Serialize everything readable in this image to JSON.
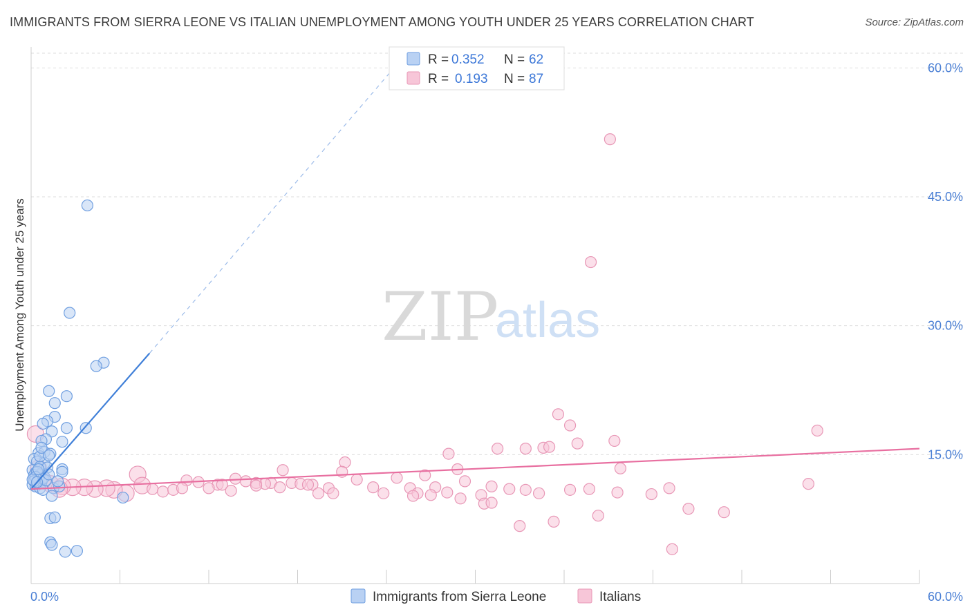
{
  "header": {
    "title": "IMMIGRANTS FROM SIERRA LEONE VS ITALIAN UNEMPLOYMENT AMONG YOUTH UNDER 25 YEARS CORRELATION CHART",
    "source": "Source: ZipAtlas.com"
  },
  "watermark": {
    "zip": "ZIP",
    "atlas": "atlas"
  },
  "colors": {
    "blue": "#3f7fd8",
    "blue_fill": "#b9d1f3",
    "pink": "#e86fa0",
    "pink_fill": "#f7c6d8",
    "axis_label": "#4a7fd4",
    "grid": "#dddddd"
  },
  "chart_data": {
    "type": "scatter",
    "title": "IMMIGRANTS FROM SIERRA LEONE VS ITALIAN UNEMPLOYMENT AMONG YOUTH UNDER 25 YEARS CORRELATION CHART",
    "xlabel": "",
    "ylabel": "Unemployment Among Youth under 25 years",
    "xlim": [
      0,
      60
    ],
    "ylim": [
      0,
      63
    ],
    "x_tick_labels": {
      "min": "0.0%",
      "max": "60.0%"
    },
    "y_ticks": [
      {
        "value": 15,
        "label": "15.0%"
      },
      {
        "value": 30,
        "label": "30.0%"
      },
      {
        "value": 45,
        "label": "45.0%"
      },
      {
        "value": 60,
        "label": "60.0%"
      }
    ],
    "legend": [
      {
        "series": "Immigrants from Sierra Leone",
        "r_label": "R =",
        "r": "0.352",
        "n_label": "N =",
        "n": "62"
      },
      {
        "series": "Italians",
        "r_label": "R =",
        "r": "0.193",
        "n_label": "N =",
        "n": "87"
      }
    ],
    "series": [
      {
        "name": "Immigrants from Sierra Leone",
        "color": "blue",
        "trend": {
          "x0": 0,
          "y0": 11.0,
          "x1": 8,
          "y1": 26.8,
          "dash_to_x": 25.5,
          "dash_to_y": 62
        },
        "points": [
          [
            3.8,
            44.0
          ],
          [
            2.6,
            31.5
          ],
          [
            4.9,
            25.7
          ],
          [
            4.4,
            25.3
          ],
          [
            1.2,
            22.4
          ],
          [
            2.4,
            21.8
          ],
          [
            1.6,
            21.0
          ],
          [
            1.6,
            19.4
          ],
          [
            1.1,
            18.9
          ],
          [
            0.8,
            18.6
          ],
          [
            2.4,
            18.1
          ],
          [
            3.7,
            18.1
          ],
          [
            1.4,
            17.7
          ],
          [
            1.0,
            16.8
          ],
          [
            0.7,
            16.6
          ],
          [
            2.1,
            16.5
          ],
          [
            0.5,
            15.2
          ],
          [
            0.9,
            15.3
          ],
          [
            1.3,
            15.1
          ],
          [
            0.2,
            14.5
          ],
          [
            0.4,
            14.2
          ],
          [
            0.9,
            14.0
          ],
          [
            0.6,
            13.6
          ],
          [
            1.1,
            13.5
          ],
          [
            2.1,
            13.3
          ],
          [
            2.1,
            13.0
          ],
          [
            0.1,
            13.2
          ],
          [
            0.3,
            12.9
          ],
          [
            0.6,
            12.7
          ],
          [
            0.9,
            12.4
          ],
          [
            0.2,
            12.2
          ],
          [
            0.5,
            12.0
          ],
          [
            0.7,
            11.8
          ],
          [
            0.4,
            11.6
          ],
          [
            0.1,
            11.5
          ],
          [
            0.3,
            11.3
          ],
          [
            1.5,
            11.1
          ],
          [
            1.9,
            11.3
          ],
          [
            0.6,
            11.1
          ],
          [
            0.8,
            10.9
          ],
          [
            1.4,
            10.2
          ],
          [
            6.2,
            10.0
          ],
          [
            1.3,
            7.6
          ],
          [
            1.6,
            7.7
          ],
          [
            1.3,
            4.8
          ],
          [
            1.4,
            4.5
          ],
          [
            2.3,
            3.7
          ],
          [
            3.1,
            3.8
          ],
          [
            0.2,
            12.6
          ],
          [
            0.4,
            13.0
          ],
          [
            0.8,
            12.2
          ],
          [
            1.0,
            12.0
          ],
          [
            0.3,
            12.4
          ],
          [
            0.5,
            13.3
          ],
          [
            1.2,
            12.7
          ],
          [
            0.2,
            11.9
          ],
          [
            0.6,
            14.8
          ],
          [
            0.7,
            15.8
          ],
          [
            1.2,
            14.9
          ],
          [
            1.8,
            11.9
          ],
          [
            0.1,
            12.1
          ],
          [
            0.4,
            11.8
          ]
        ]
      },
      {
        "name": "Italians",
        "color": "pink",
        "trend": {
          "x0": 0,
          "y0": 11.0,
          "x1": 60,
          "y1": 15.7
        },
        "points": [
          [
            39.1,
            51.7
          ],
          [
            37.8,
            37.4
          ],
          [
            35.6,
            19.7
          ],
          [
            36.4,
            18.4
          ],
          [
            53.1,
            17.8
          ],
          [
            39.4,
            16.6
          ],
          [
            36.9,
            16.3
          ],
          [
            33.4,
            15.7
          ],
          [
            34.6,
            15.8
          ],
          [
            35.0,
            15.9
          ],
          [
            31.5,
            15.7
          ],
          [
            28.2,
            15.1
          ],
          [
            21.2,
            14.1
          ],
          [
            39.8,
            13.4
          ],
          [
            7.2,
            12.7
          ],
          [
            17.0,
            13.2
          ],
          [
            21.0,
            13.0
          ],
          [
            28.8,
            13.3
          ],
          [
            22.0,
            12.1
          ],
          [
            24.7,
            12.3
          ],
          [
            26.6,
            12.6
          ],
          [
            29.3,
            11.9
          ],
          [
            31.1,
            11.3
          ],
          [
            13.8,
            12.2
          ],
          [
            10.5,
            12.0
          ],
          [
            11.3,
            11.8
          ],
          [
            12.6,
            11.5
          ],
          [
            14.5,
            11.9
          ],
          [
            15.2,
            11.7
          ],
          [
            16.2,
            11.7
          ],
          [
            17.6,
            11.7
          ],
          [
            18.2,
            11.6
          ],
          [
            19.0,
            11.5
          ],
          [
            20.1,
            11.1
          ],
          [
            23.1,
            11.2
          ],
          [
            25.6,
            11.1
          ],
          [
            26.1,
            10.5
          ],
          [
            27.3,
            11.2
          ],
          [
            28.1,
            10.6
          ],
          [
            30.4,
            10.3
          ],
          [
            32.3,
            11.0
          ],
          [
            33.4,
            10.9
          ],
          [
            34.3,
            10.5
          ],
          [
            36.4,
            10.9
          ],
          [
            37.7,
            11.0
          ],
          [
            39.6,
            10.6
          ],
          [
            41.9,
            10.4
          ],
          [
            43.1,
            11.1
          ],
          [
            52.5,
            11.6
          ],
          [
            12.0,
            11.1
          ],
          [
            12.9,
            11.5
          ],
          [
            13.5,
            10.8
          ],
          [
            15.8,
            11.6
          ],
          [
            16.8,
            11.2
          ],
          [
            18.7,
            11.5
          ],
          [
            19.4,
            10.5
          ],
          [
            20.4,
            10.5
          ],
          [
            23.8,
            10.5
          ],
          [
            25.8,
            10.2
          ],
          [
            27.0,
            10.3
          ],
          [
            29.0,
            9.9
          ],
          [
            30.6,
            9.3
          ],
          [
            31.1,
            9.4
          ],
          [
            33.0,
            6.7
          ],
          [
            35.3,
            7.2
          ],
          [
            38.3,
            7.9
          ],
          [
            44.4,
            8.7
          ],
          [
            46.8,
            8.3
          ],
          [
            43.3,
            4.0
          ],
          [
            6.4,
            10.5
          ],
          [
            5.6,
            10.9
          ],
          [
            5.1,
            11.1
          ],
          [
            4.3,
            11.0
          ],
          [
            3.6,
            11.2
          ],
          [
            2.8,
            11.2
          ],
          [
            2.1,
            11.3
          ],
          [
            1.3,
            11.6
          ],
          [
            0.8,
            12.0
          ],
          [
            0.5,
            13.4
          ],
          [
            0.3,
            17.4
          ],
          [
            7.5,
            11.4
          ],
          [
            8.2,
            11.0
          ],
          [
            8.9,
            10.7
          ],
          [
            9.6,
            10.9
          ],
          [
            10.2,
            11.1
          ],
          [
            15.2,
            11.4
          ],
          [
            1.9,
            11.0
          ]
        ]
      }
    ],
    "bottom_legend": [
      "Immigrants from Sierra Leone",
      "Italians"
    ]
  }
}
